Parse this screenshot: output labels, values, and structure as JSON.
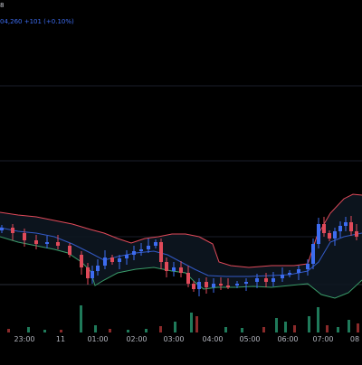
{
  "header": {
    "symbol_fragment": "8",
    "quote_fragment": "04,260",
    "change_text": "+101 (+0.10%)"
  },
  "colors": {
    "background": "#000000",
    "candle_up": "#3d6cf0",
    "candle_down": "#e04a5a",
    "upper_band": "#e04a5a",
    "lower_band": "#3a9d6a",
    "middle_band": "#3d6cf0",
    "volume_up": "#1f7a5a",
    "volume_down": "#8a2a2a",
    "grid": "#1a1e2a",
    "text": "#b2b5be"
  },
  "chart_data": {
    "type": "candlestick",
    "x_tick_labels": [
      "23:00",
      "11",
      "01:00",
      "02:00",
      "03:00",
      "04:00",
      "05:00",
      "06:00",
      "07:00",
      "08"
    ],
    "bollinger_bands": true,
    "volume_pane": true,
    "grid": true
  }
}
